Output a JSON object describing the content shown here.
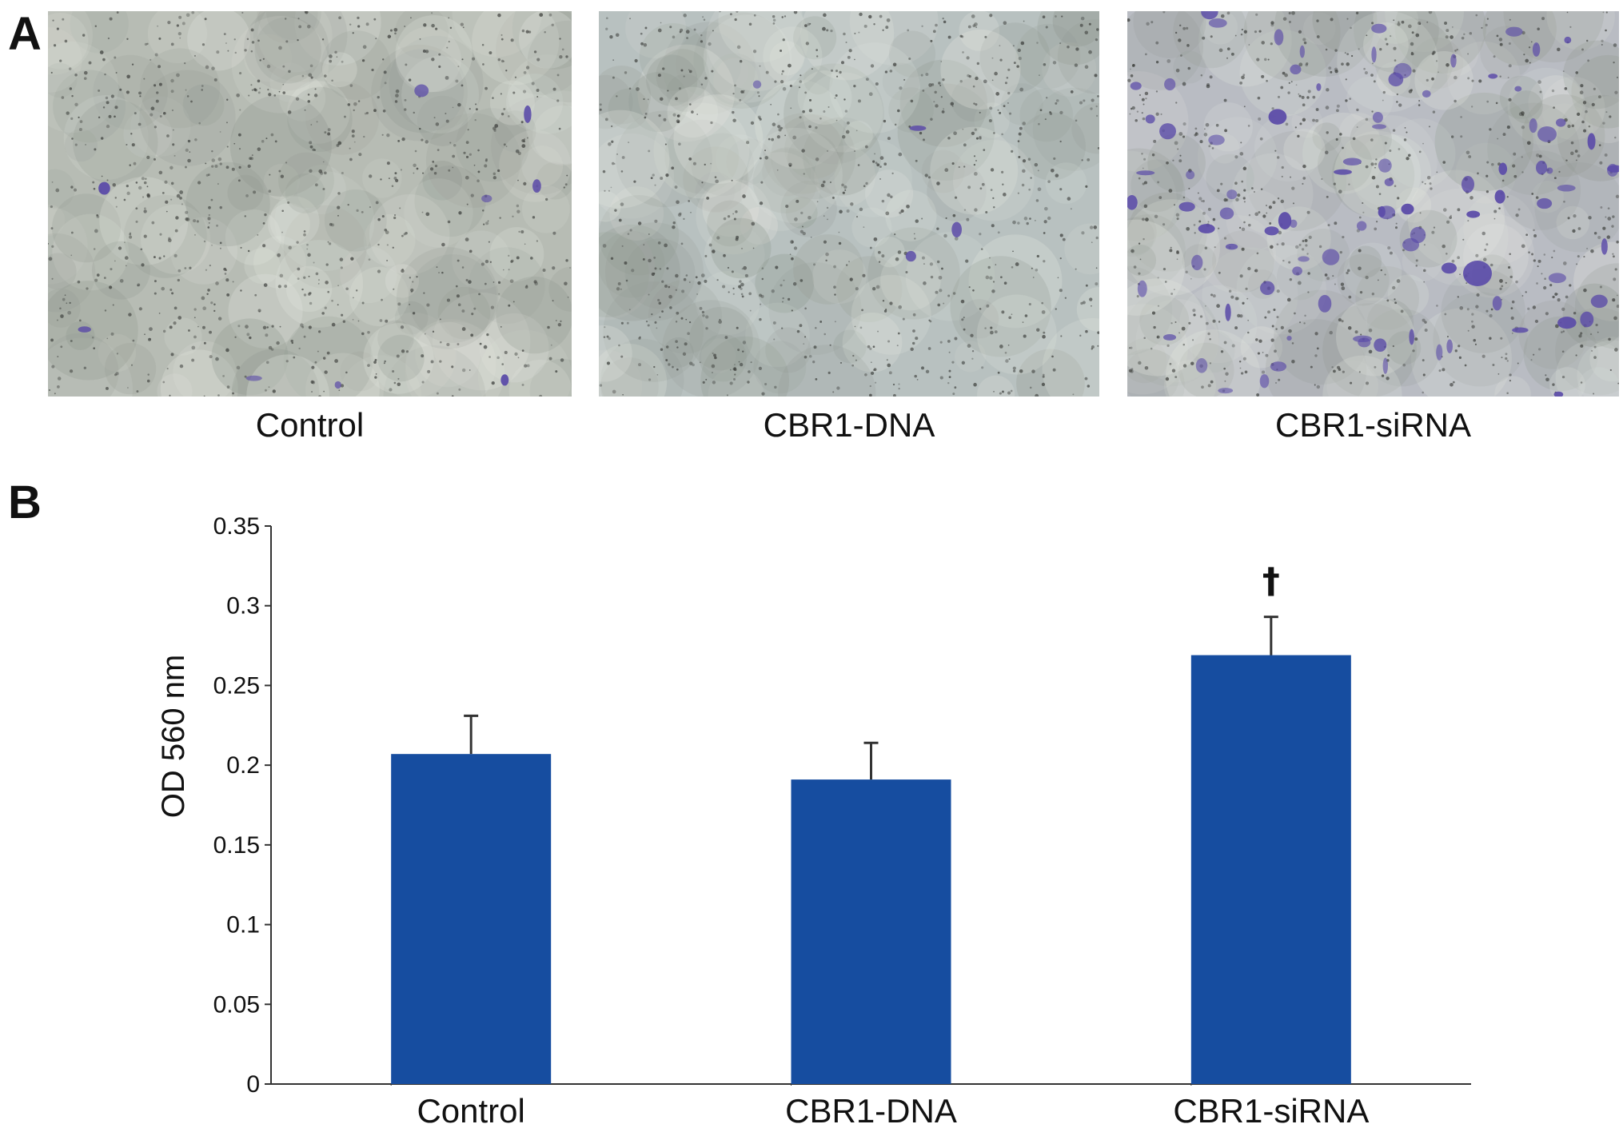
{
  "panels": {
    "a_label": "A",
    "b_label": "B"
  },
  "images": [
    {
      "caption": "Control",
      "stain_density": "low"
    },
    {
      "caption": "CBR1-DNA",
      "stain_density": "very-low"
    },
    {
      "caption": "CBR1-siRNA",
      "stain_density": "high"
    }
  ],
  "colors": {
    "bar": "#164da0",
    "error_bar": "#333333",
    "axis": "#333333",
    "stain": "#5a4aa8",
    "membrane": "#b7bcb4"
  },
  "chart_data": {
    "type": "bar",
    "categories": [
      "Control",
      "CBR1-DNA",
      "CBR1-siRNA"
    ],
    "values": [
      0.207,
      0.191,
      0.269
    ],
    "errors": [
      0.024,
      0.023,
      0.024
    ],
    "annotations": [
      "",
      "",
      "†"
    ],
    "ylabel": "OD 560 nm",
    "xlabel": "",
    "ylim": [
      0,
      0.35
    ],
    "yticks": [
      "0",
      "0.05",
      "0.1",
      "0.15",
      "0.2",
      "0.25",
      "0.3",
      "0.35"
    ],
    "grid": false,
    "legend": "none"
  }
}
